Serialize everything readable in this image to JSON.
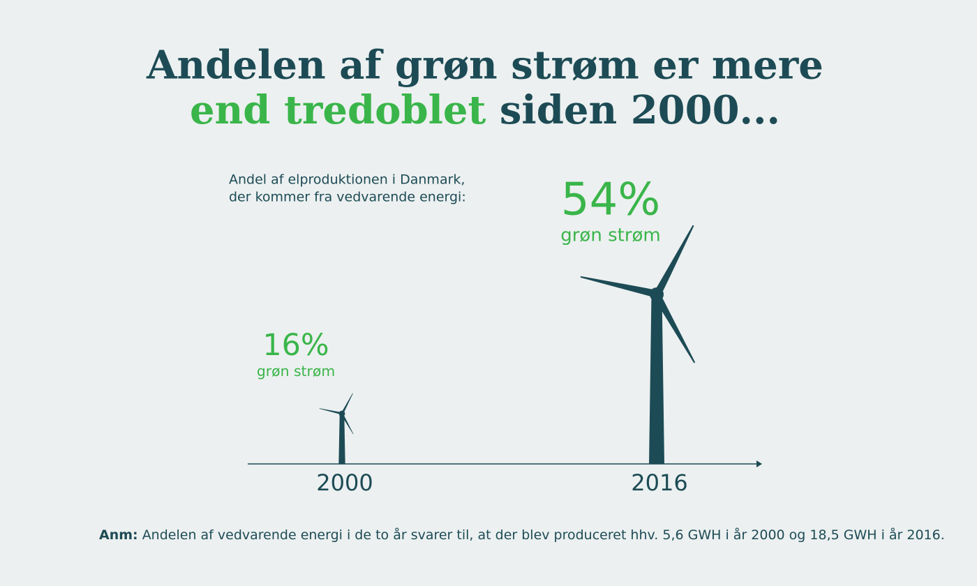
{
  "chart_data": {
    "type": "turbine",
    "title_parts": [
      "Andelen af grøn strøm er mere",
      "end tredoblet",
      "siden 2000..."
    ],
    "subtitle_lines": [
      "Andel af elproduktionen i Danmark,",
      "der kommer fra vedvarende energi:"
    ],
    "categories": [
      "2000",
      "2016"
    ],
    "values": [
      16,
      54
    ],
    "value_labels": [
      "16%",
      "54%"
    ],
    "value_caption": "grøn strøm",
    "color": "#1d4b55",
    "label_color": "#3ab54a",
    "note_lead": "Anm:",
    "note": "Andelen af vedvarende energi i de to år svarer til, at der blev produceret hhv. 5,6 GWH i år 2000 og 18,5 GWH i år 2016."
  }
}
